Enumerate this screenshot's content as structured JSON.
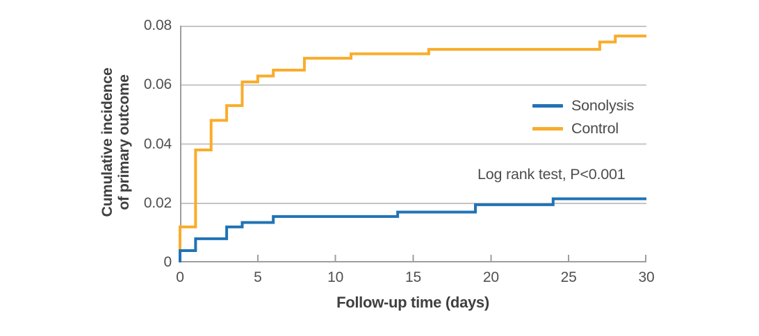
{
  "chart_data": {
    "type": "line",
    "style": "step",
    "title": "",
    "xlabel": "Follow-up time (days)",
    "ylabel_lines": [
      "Cumulative incidence",
      "of primary outcome"
    ],
    "xlim": [
      0,
      30
    ],
    "ylim": [
      0,
      0.08
    ],
    "xticks": [
      0,
      5,
      10,
      15,
      20,
      25,
      30
    ],
    "yticks": [
      0,
      0.02,
      0.04,
      0.06,
      0.08
    ],
    "ytick_labels": [
      "0",
      "0.02",
      "0.04",
      "0.06",
      "0.08"
    ],
    "grid": "horizontal",
    "legend_position": "inside-right",
    "annotation": "Log rank test, P<0.001",
    "series": [
      {
        "name": "Sonolysis",
        "color": "#2173B5",
        "points": [
          [
            0,
            0.004
          ],
          [
            1,
            0.008
          ],
          [
            3,
            0.012
          ],
          [
            4,
            0.0135
          ],
          [
            6,
            0.0155
          ],
          [
            14,
            0.017
          ],
          [
            19,
            0.0195
          ],
          [
            24,
            0.0215
          ],
          [
            30,
            0.0215
          ]
        ]
      },
      {
        "name": "Control",
        "color": "#F9AC2B",
        "points": [
          [
            0,
            0.012
          ],
          [
            1,
            0.038
          ],
          [
            2,
            0.048
          ],
          [
            3,
            0.053
          ],
          [
            4,
            0.061
          ],
          [
            5,
            0.063
          ],
          [
            6,
            0.065
          ],
          [
            8,
            0.069
          ],
          [
            11,
            0.0705
          ],
          [
            16,
            0.072
          ],
          [
            27,
            0.0745
          ],
          [
            28,
            0.0765
          ],
          [
            30,
            0.0765
          ]
        ]
      }
    ]
  },
  "colors": {
    "sonolysis": "#2173B5",
    "control": "#F9AC2B",
    "axis": "#9D9D9D",
    "gridline": "#C4C4C4",
    "text": "#474747"
  }
}
